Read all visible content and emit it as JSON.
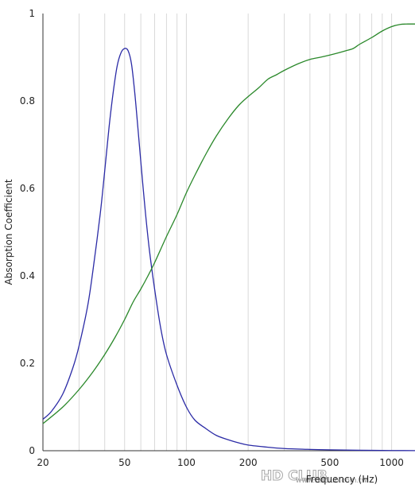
{
  "chart_data": {
    "type": "line",
    "title": "",
    "xlabel": "Frequency (Hz)",
    "ylabel": "Absorption Coefficient",
    "xscale": "log",
    "xlim": [
      20,
      1300
    ],
    "ylim": [
      0,
      1
    ],
    "x_ticks": [
      20,
      50,
      100,
      200,
      500,
      1000
    ],
    "x_tick_labels": [
      "20",
      "50",
      "100",
      "200",
      "500",
      "1000"
    ],
    "x_minor_gridlines": [
      30,
      40,
      60,
      70,
      80,
      90,
      300,
      400,
      600,
      700,
      800,
      900
    ],
    "y_ticks": [
      0,
      0.2,
      0.4,
      0.6,
      0.8,
      1
    ],
    "y_tick_labels": [
      "0",
      "0.2",
      "0.4",
      "0.6",
      "0.8",
      "1"
    ],
    "grid": "vertical",
    "colors": {
      "blue": "#2b2ba6",
      "green": "#2a882a",
      "grid": "#d9d9d9",
      "axis": "#333333"
    },
    "series": [
      {
        "color": "#2b2ba6",
        "x": [
          20,
          22,
          25,
          28,
          30,
          33,
          35,
          38,
          40,
          42,
          44,
          46,
          48,
          50,
          52,
          54,
          56,
          58,
          60,
          63,
          66,
          70,
          75,
          80,
          90,
          100,
          110,
          125,
          140,
          160,
          180,
          200,
          250,
          300,
          400,
          500,
          700,
          1000,
          1300
        ],
        "y": [
          0.072,
          0.09,
          0.13,
          0.19,
          0.24,
          0.33,
          0.41,
          0.54,
          0.64,
          0.74,
          0.82,
          0.88,
          0.91,
          0.92,
          0.915,
          0.885,
          0.82,
          0.74,
          0.66,
          0.55,
          0.46,
          0.37,
          0.28,
          0.22,
          0.15,
          0.1,
          0.07,
          0.05,
          0.035,
          0.025,
          0.018,
          0.013,
          0.008,
          0.005,
          0.003,
          0.002,
          0.001,
          0.0005,
          0.0003
        ]
      },
      {
        "color": "#2a882a",
        "x": [
          20,
          25,
          30,
          35,
          40,
          45,
          50,
          55,
          60,
          65,
          70,
          80,
          90,
          100,
          110,
          125,
          140,
          160,
          180,
          200,
          225,
          250,
          275,
          300,
          350,
          400,
          450,
          500,
          550,
          600,
          650,
          700,
          800,
          900,
          1000,
          1100,
          1200,
          1300
        ],
        "y": [
          0.062,
          0.1,
          0.14,
          0.18,
          0.22,
          0.26,
          0.3,
          0.34,
          0.37,
          0.4,
          0.43,
          0.49,
          0.54,
          0.59,
          0.63,
          0.68,
          0.72,
          0.76,
          0.79,
          0.81,
          0.83,
          0.85,
          0.86,
          0.87,
          0.885,
          0.895,
          0.9,
          0.905,
          0.91,
          0.915,
          0.92,
          0.93,
          0.945,
          0.96,
          0.97,
          0.975,
          0.976,
          0.976
        ]
      }
    ]
  },
  "watermark": {
    "logo": "HD CLUB",
    "url": "www.hdclub.com.tw"
  }
}
